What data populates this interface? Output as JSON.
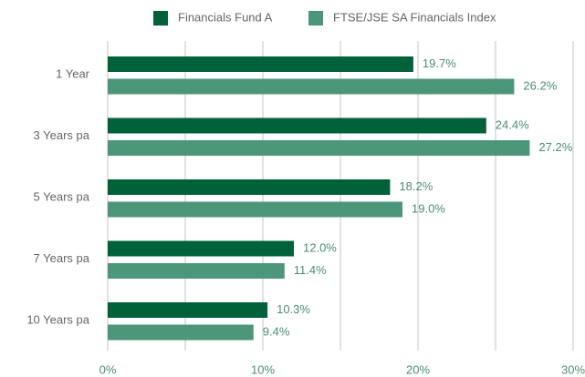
{
  "chart_data": {
    "type": "hbar",
    "categories": [
      "1 Year",
      "3 Years pa",
      "5 Years pa",
      "7 Years pa",
      "10 Years pa"
    ],
    "series": [
      {
        "name": "Financials Fund A",
        "color": "#00613a",
        "values": [
          19.7,
          24.4,
          18.2,
          12.0,
          10.3
        ],
        "value_labels": [
          "19.7%",
          "24.4%",
          "18.2%",
          "12.0%",
          "10.3%"
        ]
      },
      {
        "name": "FTSE/JSE SA Financials Index",
        "color": "#4c967a",
        "values": [
          26.2,
          27.2,
          19.0,
          11.4,
          9.4
        ],
        "value_labels": [
          "26.2%",
          "27.2%",
          "19.0%",
          "11.4%",
          "9.4%"
        ]
      }
    ],
    "xlim": [
      0,
      30
    ],
    "xticks": [
      {
        "value": 0,
        "label": "0%"
      },
      {
        "value": 10,
        "label": "10%"
      },
      {
        "value": 20,
        "label": "20%"
      },
      {
        "value": 30,
        "label": "30%"
      }
    ],
    "minor_xticks": [
      5,
      15,
      25
    ],
    "grid": true,
    "legend": "top"
  }
}
